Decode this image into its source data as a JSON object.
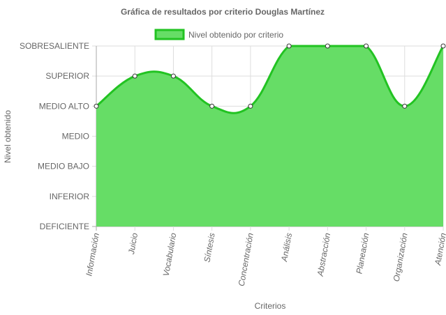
{
  "chart_data": {
    "type": "area",
    "title": "Gráfica de resultados por criterio Douglas Martínez",
    "xlabel": "Criterios",
    "ylabel": "Nivel obtenido",
    "y_categories": [
      "DEFICIENTE",
      "INFERIOR",
      "MEDIO BAJO",
      "MEDIO",
      "MEDIO ALTO",
      "SUPERIOR",
      "SOBRESALIENTE"
    ],
    "ylim": [
      0,
      6
    ],
    "categories": [
      "Información",
      "Juicio",
      "Vocabulario",
      "Síntesis",
      "Concentración",
      "Análisis",
      "Abstracción",
      "Planeación",
      "Organización",
      "Atención"
    ],
    "series": [
      {
        "name": "Nivel obtenido por criterio",
        "values": [
          4,
          5,
          5,
          4,
          4,
          6,
          6,
          6,
          4,
          6
        ],
        "color": "#22c322",
        "fill": "#66dd66"
      }
    ],
    "grid": true,
    "legend": "top-center"
  }
}
